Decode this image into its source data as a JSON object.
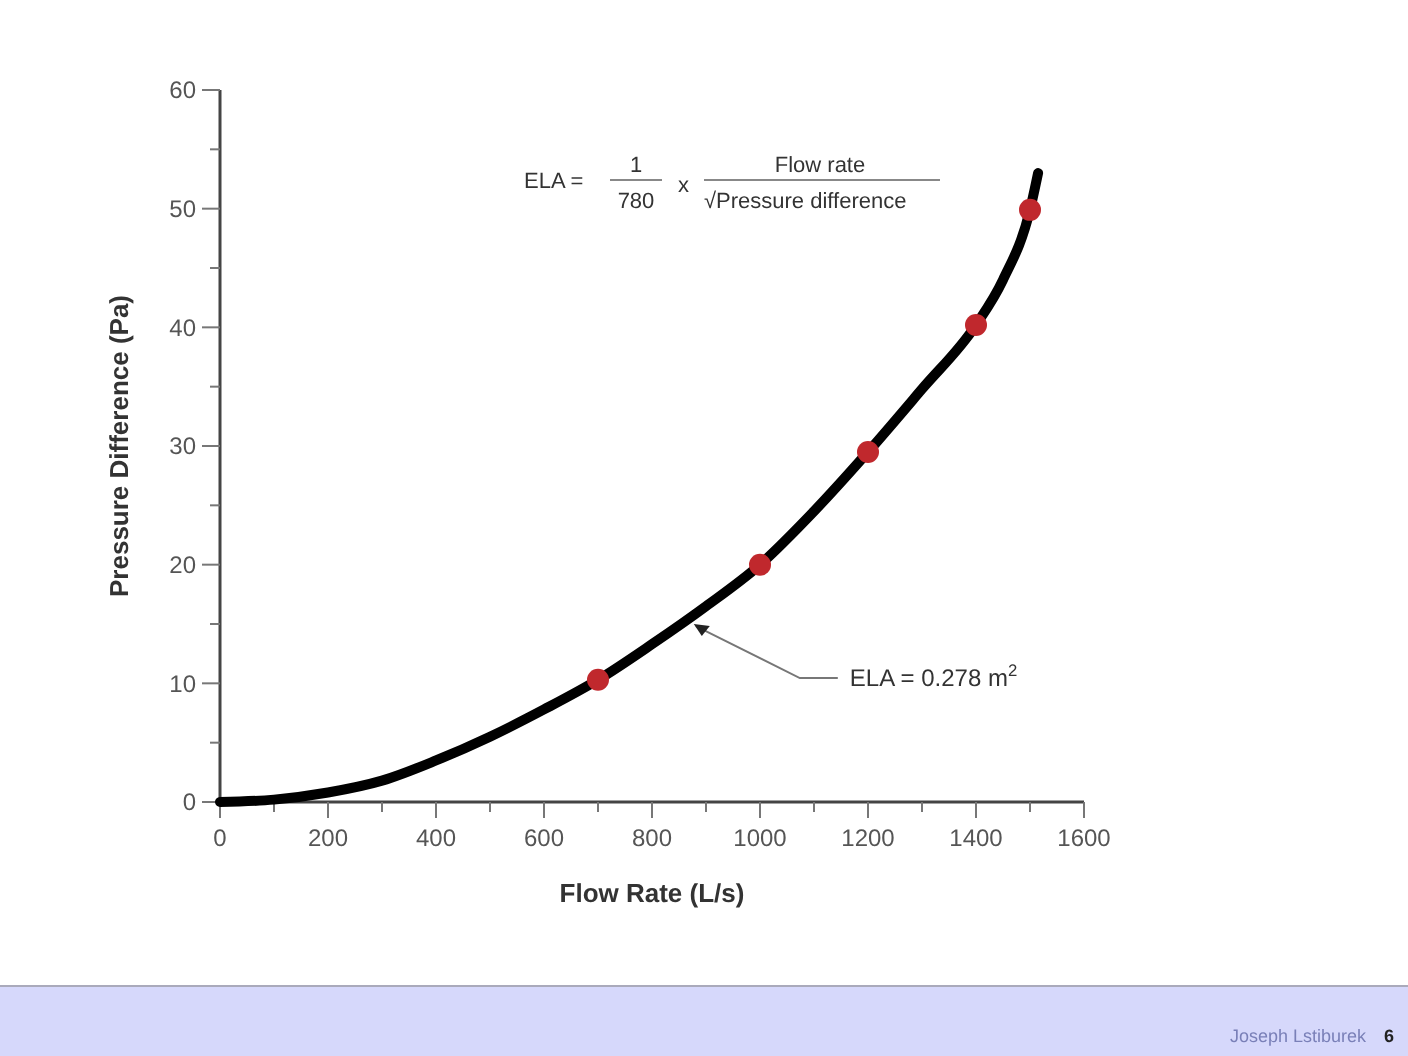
{
  "chart_data": {
    "type": "line",
    "xlabel": "Flow Rate (L/s)",
    "ylabel": "Pressure Difference (Pa)",
    "xlim": [
      0,
      1600
    ],
    "ylim": [
      0,
      60
    ],
    "xticks": [
      0,
      {
        "value": 100,
        "label": null
      },
      200,
      {
        "value": 300,
        "label": null
      },
      400,
      {
        "value": 500,
        "label": null
      },
      600,
      {
        "value": 700,
        "label": null
      },
      800,
      {
        "value": 900,
        "label": null
      },
      1000,
      {
        "value": 1100,
        "label": null
      },
      1200,
      {
        "value": 1300,
        "label": null
      },
      1400,
      {
        "value": 1500,
        "label": null
      },
      1600
    ],
    "yticks": [
      0,
      {
        "value": 5,
        "label": null
      },
      10,
      {
        "value": 15,
        "label": null
      },
      20,
      {
        "value": 25,
        "label": null
      },
      30,
      {
        "value": 35,
        "label": null
      },
      40,
      {
        "value": 45,
        "label": null
      },
      50,
      {
        "value": 55,
        "label": null
      },
      60
    ],
    "grid": false,
    "series": [
      {
        "color": "#000000",
        "marker": "none",
        "line_style": "solid",
        "x": [
          0,
          100,
          200,
          300,
          400,
          500,
          600,
          700,
          800,
          900,
          1000,
          1100,
          1200,
          1300,
          1400,
          1450,
          1500,
          1515
        ],
        "values": [
          0,
          0.2,
          0.8,
          1.8,
          3.5,
          5.5,
          7.8,
          10.3,
          13.3,
          16.5,
          20,
          24.5,
          29.5,
          34.8,
          40.2,
          44,
          49.9,
          53
        ]
      },
      {
        "type": "scatter",
        "color": "#c0282d",
        "marker": "circle",
        "x": [
          700,
          1000,
          1200,
          1400,
          1500
        ],
        "values": [
          10.3,
          20,
          29.5,
          40.2,
          49.9
        ]
      }
    ],
    "annotations": [
      "ELA =",
      "1",
      "780",
      "x",
      "Flow rate",
      "√Pressure difference",
      {
        "text": "ELA = 0.278 m$^{2}$",
        "x": 870,
        "y": 15.5
      },
      "Joseph Lstiburek",
      "6"
    ]
  }
}
